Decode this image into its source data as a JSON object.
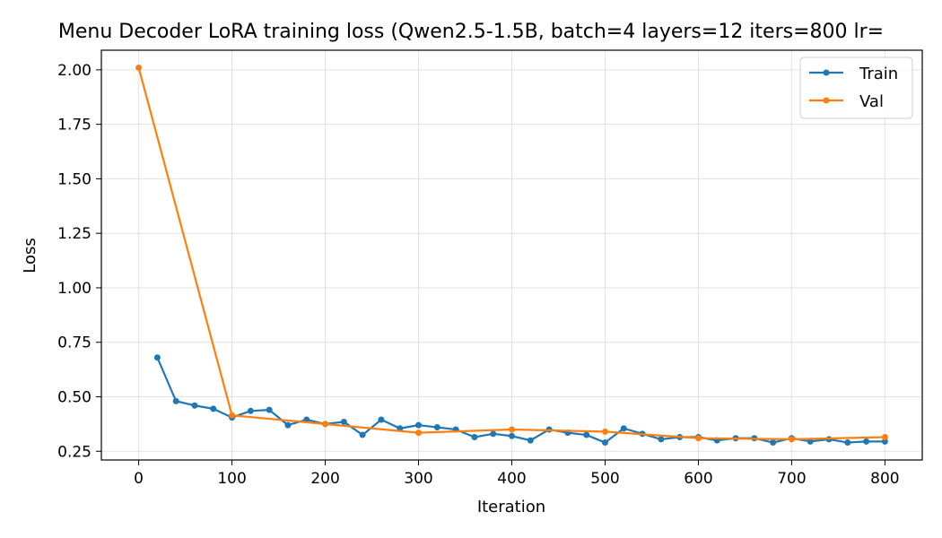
{
  "chart_data": {
    "type": "line",
    "title": "Menu Decoder LoRA training loss (Qwen2.5-1.5B, batch=4 layers=12 iters=800 lr=",
    "xlabel": "Iteration",
    "ylabel": "Loss",
    "xlim": [
      -40,
      840
    ],
    "ylim": [
      0.21,
      2.09
    ],
    "xticks": [
      0,
      100,
      200,
      300,
      400,
      500,
      600,
      700,
      800
    ],
    "yticks": [
      0.25,
      0.5,
      0.75,
      1.0,
      1.25,
      1.5,
      1.75,
      2.0
    ],
    "xtick_labels": [
      "0",
      "100",
      "200",
      "300",
      "400",
      "500",
      "600",
      "700",
      "800"
    ],
    "ytick_labels": [
      "0.25",
      "0.50",
      "0.75",
      "1.00",
      "1.25",
      "1.50",
      "1.75",
      "2.00"
    ],
    "grid": true,
    "legend_position": "top-right",
    "series": [
      {
        "name": "Train",
        "color": "#1f77b4",
        "x": [
          20,
          40,
          60,
          80,
          100,
          120,
          140,
          160,
          180,
          200,
          220,
          240,
          260,
          280,
          300,
          320,
          340,
          360,
          380,
          400,
          420,
          440,
          460,
          480,
          500,
          520,
          540,
          560,
          580,
          600,
          620,
          640,
          660,
          680,
          700,
          720,
          740,
          760,
          780,
          800
        ],
        "y": [
          0.68,
          0.48,
          0.46,
          0.445,
          0.405,
          0.435,
          0.44,
          0.37,
          0.395,
          0.375,
          0.385,
          0.325,
          0.395,
          0.355,
          0.37,
          0.36,
          0.35,
          0.315,
          0.33,
          0.32,
          0.3,
          0.35,
          0.335,
          0.325,
          0.29,
          0.355,
          0.33,
          0.305,
          0.315,
          0.315,
          0.3,
          0.31,
          0.31,
          0.29,
          0.31,
          0.295,
          0.305,
          0.29,
          0.295,
          0.295
        ]
      },
      {
        "name": "Val",
        "color": "#ff7f0e",
        "x": [
          0,
          100,
          200,
          300,
          400,
          500,
          600,
          700,
          800
        ],
        "y": [
          2.01,
          0.415,
          0.375,
          0.335,
          0.35,
          0.34,
          0.31,
          0.305,
          0.315
        ]
      }
    ]
  }
}
